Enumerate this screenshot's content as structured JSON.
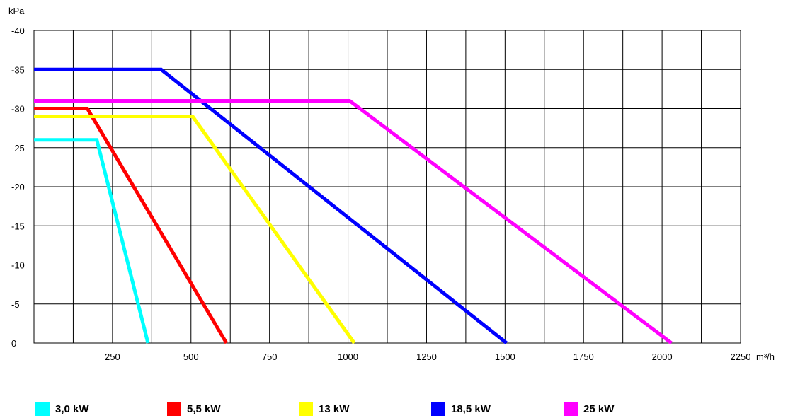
{
  "chart_data": {
    "type": "line",
    "xlabel": "m³/h",
    "ylabel": "kPa",
    "xlim": [
      0,
      2250
    ],
    "ylim": [
      0,
      -40
    ],
    "x_ticks": [
      250,
      500,
      750,
      1000,
      1250,
      1500,
      1750,
      2000,
      2250
    ],
    "y_ticks": [
      -40,
      -35,
      -30,
      -25,
      -20,
      -15,
      -10,
      -5,
      0
    ],
    "x_tick_labels": [
      "250",
      "500",
      "750",
      "1000",
      "1250",
      "1500",
      "1750",
      "2000",
      "2250"
    ],
    "y_tick_labels": [
      "-40",
      "-35",
      "-30",
      "-25",
      "-20",
      "-15",
      "-10",
      "-5",
      "0"
    ],
    "grid": true,
    "legend_position": "bottom",
    "series": [
      {
        "name": "3,0 kW",
        "color": "#00FFFF",
        "x": [
          0,
          200,
          363
        ],
        "y": [
          -26,
          -26,
          0
        ]
      },
      {
        "name": "5,5 kW",
        "color": "#FF0000",
        "x": [
          0,
          170,
          613
        ],
        "y": [
          -30,
          -30,
          0
        ]
      },
      {
        "name": "13 kW",
        "color": "#FFFF00",
        "x": [
          0,
          505,
          1020
        ],
        "y": [
          -29,
          -29,
          0
        ]
      },
      {
        "name": "18,5 kW",
        "color": "#0000FF",
        "x": [
          0,
          405,
          1505
        ],
        "y": [
          -35,
          -35,
          0
        ]
      },
      {
        "name": "25 kW",
        "color": "#FF00FF",
        "x": [
          0,
          1005,
          2030
        ],
        "y": [
          -31,
          -31,
          0
        ]
      }
    ]
  }
}
